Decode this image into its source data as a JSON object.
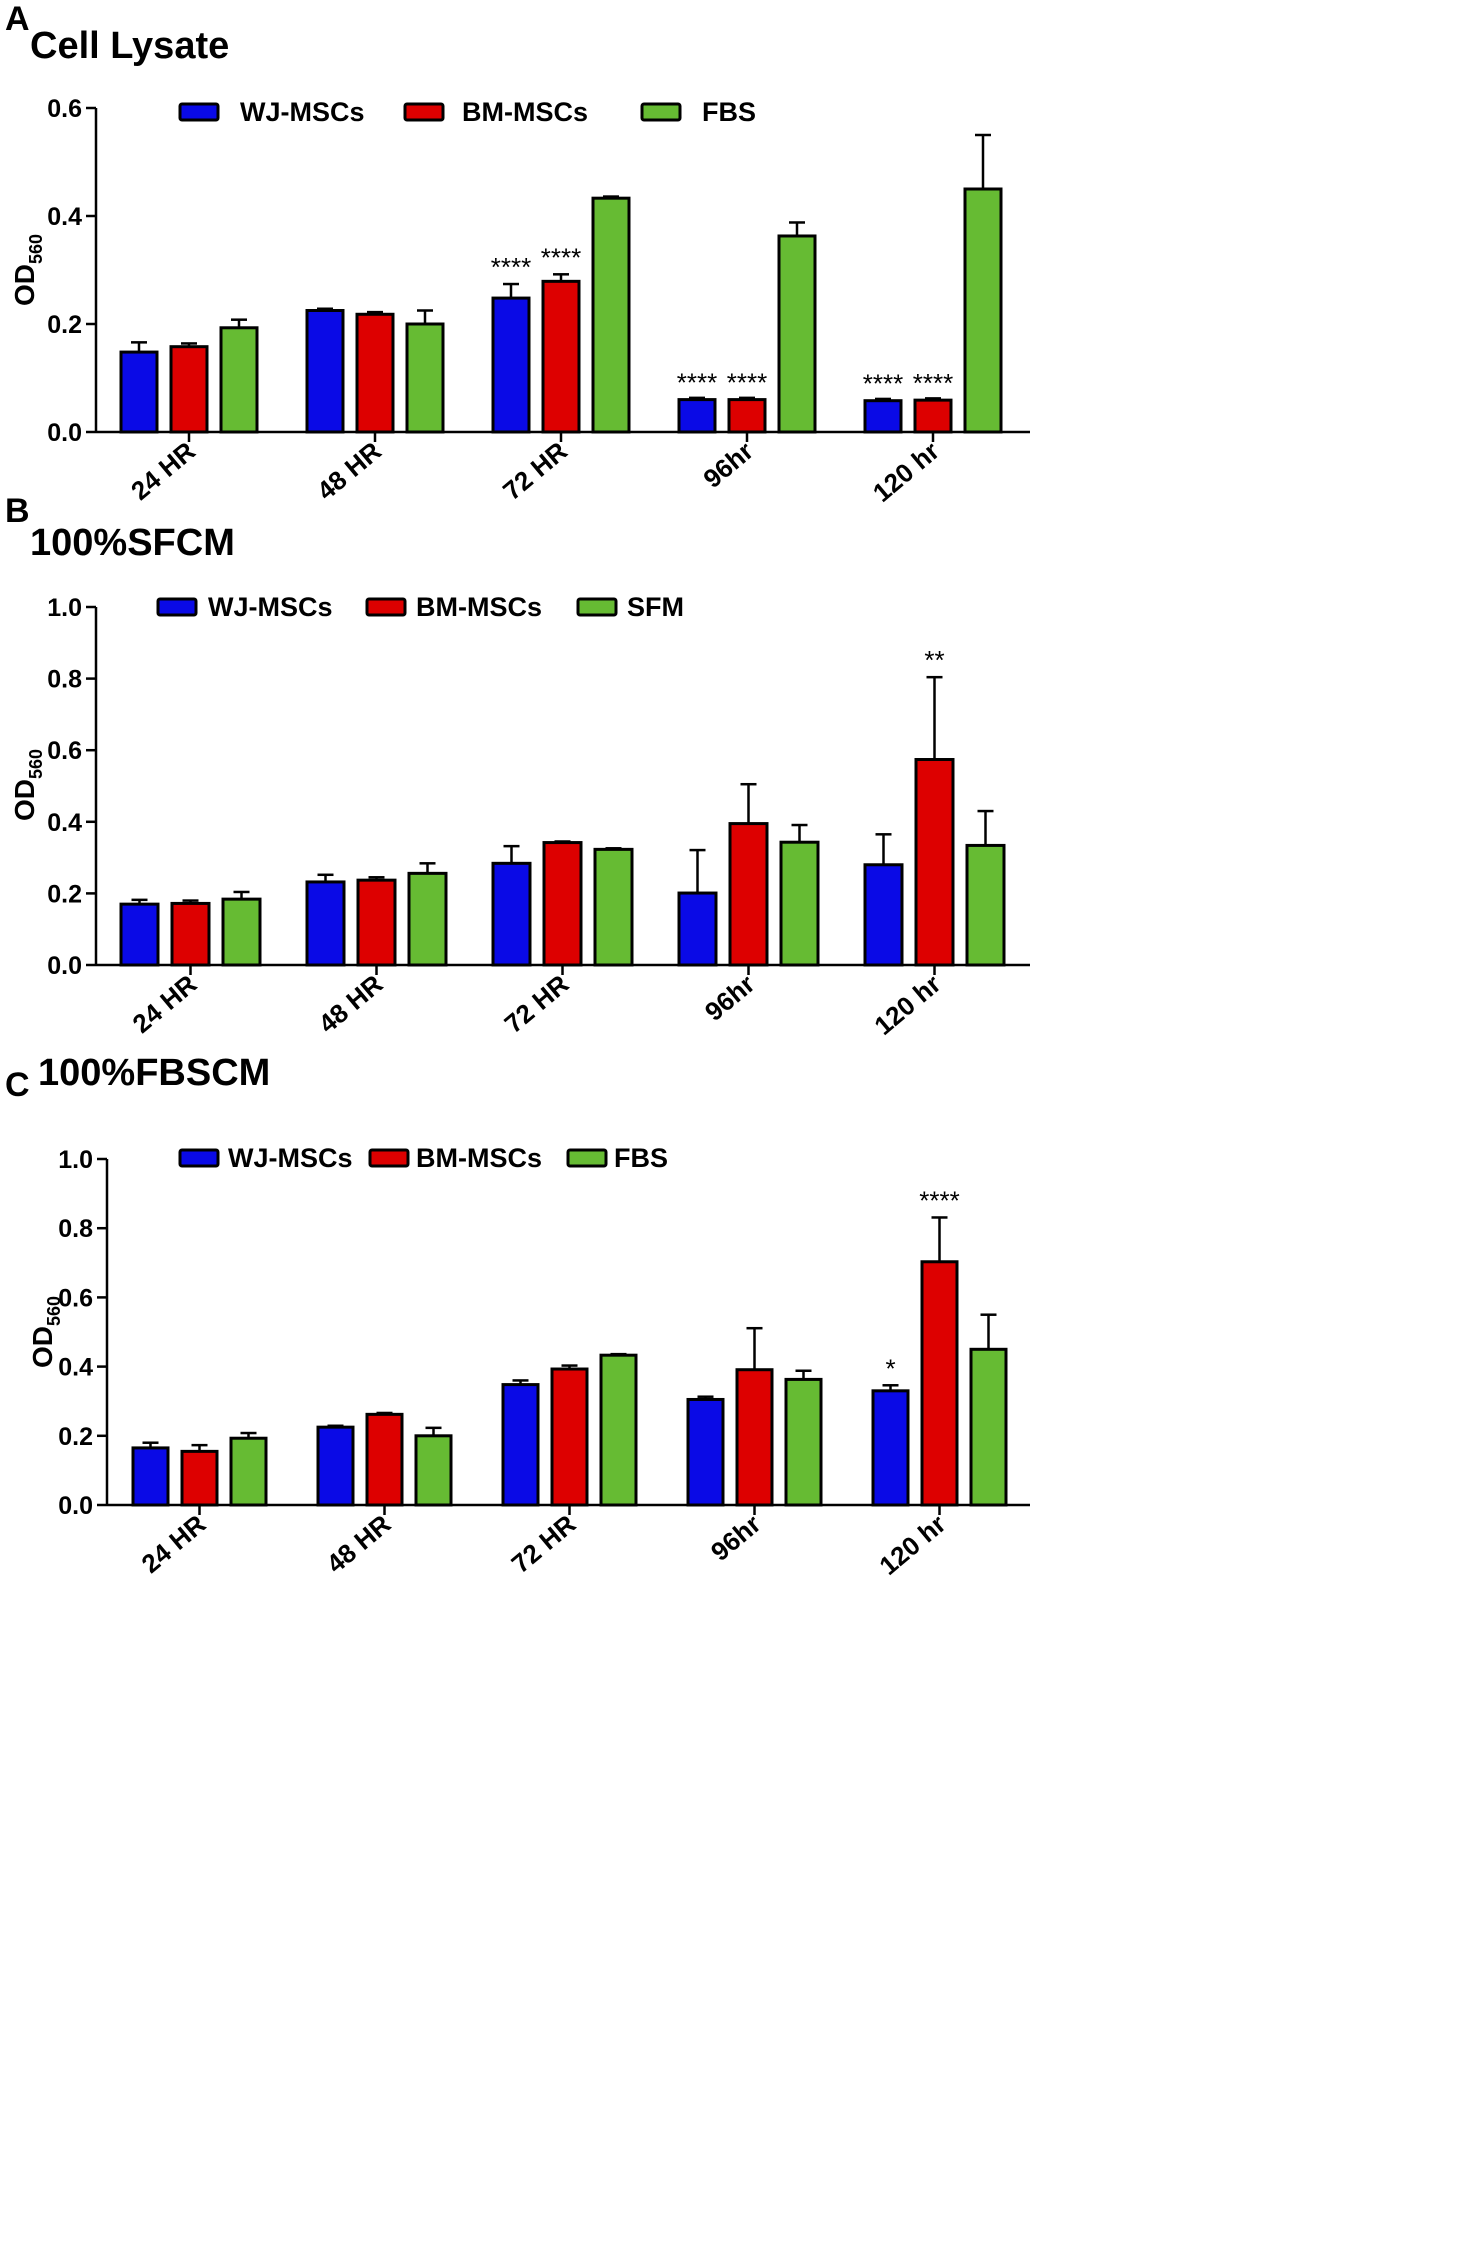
{
  "chart_data": [
    {
      "type": "bar",
      "panel": "A",
      "title": "Cell Lysate",
      "ylabel_main": "OD",
      "ylabel_sub": "560",
      "xlabel": "",
      "ylim": [
        0,
        0.6
      ],
      "yticks": [
        0.0,
        0.2,
        0.4,
        0.6
      ],
      "ytick_labels": [
        "0.0",
        "0.2",
        "0.4",
        "0.6"
      ],
      "legend_position": "top",
      "categories": [
        "24 HR",
        "48 HR",
        "72 HR",
        "96hr",
        "120 hr"
      ],
      "series": [
        {
          "name": "WJ-MSCs",
          "color": "#0a0ae6",
          "values": [
            0.148,
            0.225,
            0.248,
            0.06,
            0.058
          ],
          "errors": [
            0.018,
            0.0,
            0.026,
            0.0,
            0.0
          ],
          "sig": [
            "",
            "",
            "****",
            "****",
            "****"
          ]
        },
        {
          "name": "BM-MSCs",
          "color": "#dd0000",
          "values": [
            0.158,
            0.218,
            0.279,
            0.06,
            0.059
          ],
          "errors": [
            0.006,
            0.004,
            0.013,
            0.0,
            0.0
          ],
          "sig": [
            "",
            "",
            "****",
            "****",
            "****"
          ]
        },
        {
          "name": "FBS",
          "color": "#66bb33",
          "values": [
            0.193,
            0.2,
            0.433,
            0.363,
            0.45
          ],
          "errors": [
            0.015,
            0.025,
            0.003,
            0.025,
            0.1
          ],
          "sig": [
            "",
            "",
            "",
            "",
            ""
          ]
        }
      ]
    },
    {
      "type": "bar",
      "panel": "B",
      "title": "100%SFCM",
      "ylabel_main": "OD",
      "ylabel_sub": "560",
      "xlabel": "",
      "ylim": [
        0,
        1.0
      ],
      "yticks": [
        0.0,
        0.2,
        0.4,
        0.6,
        0.8,
        1.0
      ],
      "ytick_labels": [
        "0.0",
        "0.2",
        "0.4",
        "0.6",
        "0.8",
        "1.0"
      ],
      "legend_position": "top",
      "categories": [
        "24 HR",
        "48 HR",
        "72 HR",
        "96hr",
        "120 hr"
      ],
      "series": [
        {
          "name": "WJ-MSCs",
          "color": "#0a0ae6",
          "values": [
            0.17,
            0.232,
            0.284,
            0.201,
            0.28
          ],
          "errors": [
            0.012,
            0.02,
            0.048,
            0.12,
            0.085
          ],
          "sig": [
            "",
            "",
            "",
            "",
            ""
          ]
        },
        {
          "name": "BM-MSCs",
          "color": "#dd0000",
          "values": [
            0.172,
            0.237,
            0.342,
            0.395,
            0.574
          ],
          "errors": [
            0.008,
            0.008,
            0.003,
            0.11,
            0.23
          ],
          "sig": [
            "",
            "",
            "",
            "",
            "**"
          ]
        },
        {
          "name": "SFM",
          "color": "#66bb33",
          "values": [
            0.184,
            0.256,
            0.323,
            0.343,
            0.334
          ],
          "errors": [
            0.02,
            0.028,
            0.003,
            0.048,
            0.096
          ],
          "sig": [
            "",
            "",
            "",
            "",
            ""
          ]
        }
      ]
    },
    {
      "type": "bar",
      "panel": "C",
      "title": "100%FBSCM",
      "ylabel_main": "OD",
      "ylabel_sub": "560",
      "xlabel": "",
      "ylim": [
        0,
        1.0
      ],
      "yticks": [
        0.0,
        0.2,
        0.4,
        0.6,
        0.8,
        1.0
      ],
      "ytick_labels": [
        "0.0",
        "0.2",
        "0.4",
        "0.6",
        "0.8",
        "1.0"
      ],
      "legend_position": "top",
      "categories": [
        "24 HR",
        "48 HR",
        "72 HR",
        "96hr",
        "120 hr"
      ],
      "series": [
        {
          "name": "WJ-MSCs",
          "color": "#0a0ae6",
          "values": [
            0.165,
            0.225,
            0.348,
            0.305,
            0.33
          ],
          "errors": [
            0.015,
            0.004,
            0.012,
            0.008,
            0.016
          ],
          "sig": [
            "",
            "",
            "",
            "",
            "*"
          ]
        },
        {
          "name": "BM-MSCs",
          "color": "#dd0000",
          "values": [
            0.155,
            0.262,
            0.393,
            0.391,
            0.703
          ],
          "errors": [
            0.018,
            0.004,
            0.01,
            0.12,
            0.128
          ],
          "sig": [
            "",
            "",
            "",
            "",
            "****"
          ]
        },
        {
          "name": "FBS",
          "color": "#66bb33",
          "values": [
            0.193,
            0.2,
            0.433,
            0.363,
            0.45
          ],
          "errors": [
            0.015,
            0.023,
            0.003,
            0.025,
            0.1
          ],
          "sig": [
            "",
            "",
            "",
            "",
            ""
          ]
        }
      ]
    }
  ]
}
